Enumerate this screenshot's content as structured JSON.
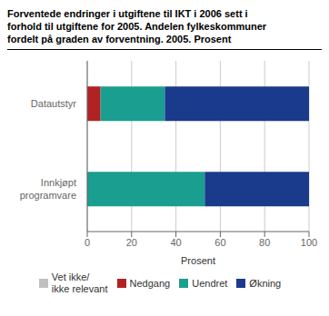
{
  "chart_data": {
    "type": "bar",
    "orientation": "horizontal",
    "stacked": true,
    "title": "Forventede endringer i utgiftene til IKT i 2006 sett i\nforhold til utgiftene for 2005. Andelen fylkeskommuner\nfordelt på graden av forventning. 2005. Prosent",
    "categories": [
      "Datautstyr",
      "Innkjøpt\nprogramvare"
    ],
    "series": [
      {
        "name": "Vet ikke/\nikke relevant",
        "color": "#c0c0c0",
        "values": [
          0,
          0
        ]
      },
      {
        "name": "Nedgang",
        "color": "#b22222",
        "values": [
          6,
          0
        ]
      },
      {
        "name": "Uendret",
        "color": "#1a9e8f",
        "values": [
          29,
          53
        ]
      },
      {
        "name": "Økning",
        "color": "#1a3a8c",
        "values": [
          65,
          47
        ]
      }
    ],
    "xlabel": "Prosent",
    "xlim": [
      0,
      100
    ],
    "xticks": [
      0,
      20,
      40,
      60,
      80,
      100
    ],
    "grid": true,
    "legend": "bottom"
  }
}
